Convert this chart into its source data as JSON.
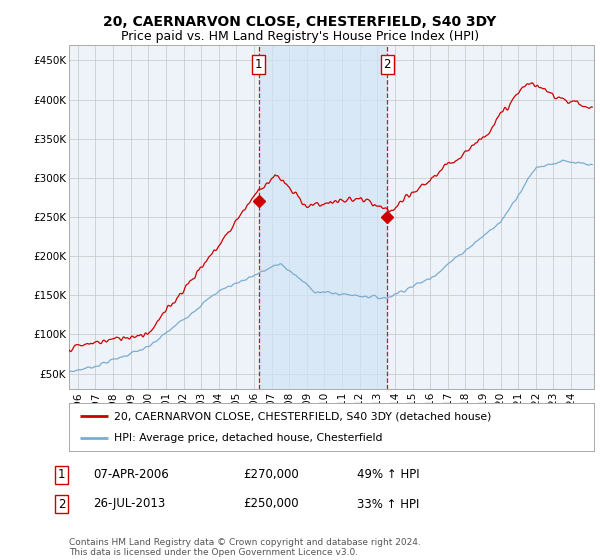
{
  "title": "20, CAERNARVON CLOSE, CHESTERFIELD, S40 3DY",
  "subtitle": "Price paid vs. HM Land Registry's House Price Index (HPI)",
  "ylabel_ticks": [
    "£50K",
    "£100K",
    "£150K",
    "£200K",
    "£250K",
    "£300K",
    "£350K",
    "£400K",
    "£450K"
  ],
  "ytick_values": [
    50000,
    100000,
    150000,
    200000,
    250000,
    300000,
    350000,
    400000,
    450000
  ],
  "ylim": [
    30000,
    470000
  ],
  "xlim_start": 1995.5,
  "xlim_end": 2025.3,
  "xticks": [
    1996,
    1997,
    1998,
    1999,
    2000,
    2001,
    2002,
    2003,
    2004,
    2005,
    2006,
    2007,
    2008,
    2009,
    2010,
    2011,
    2012,
    2013,
    2014,
    2015,
    2016,
    2017,
    2018,
    2019,
    2020,
    2021,
    2022,
    2023,
    2024
  ],
  "red_line_color": "#cc0000",
  "blue_line_color": "#7aadcf",
  "shade_color": "#d0e4f5",
  "grid_color": "#cccccc",
  "background_color": "#ffffff",
  "plot_bg_color": "#eef3fa",
  "sale1_x": 2006.27,
  "sale1_y": 270000,
  "sale2_x": 2013.57,
  "sale2_y": 250000,
  "vline1_x": 2006.27,
  "vline2_x": 2013.57,
  "legend_line1": "20, CAERNARVON CLOSE, CHESTERFIELD, S40 3DY (detached house)",
  "legend_line2": "HPI: Average price, detached house, Chesterfield",
  "table_row1_num": "1",
  "table_row1_date": "07-APR-2006",
  "table_row1_price": "£270,000",
  "table_row1_hpi": "49% ↑ HPI",
  "table_row2_num": "2",
  "table_row2_date": "26-JUL-2013",
  "table_row2_price": "£250,000",
  "table_row2_hpi": "33% ↑ HPI",
  "footer": "Contains HM Land Registry data © Crown copyright and database right 2024.\nThis data is licensed under the Open Government Licence v3.0.",
  "title_fontsize": 10,
  "subtitle_fontsize": 9
}
